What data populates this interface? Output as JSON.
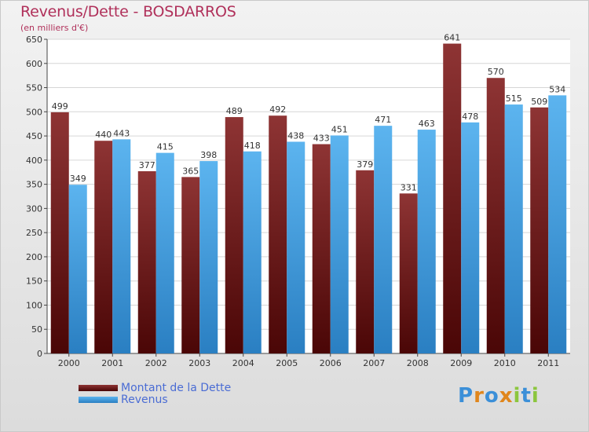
{
  "chart_data": {
    "type": "bar",
    "title": "Revenus/Dette - BOSDARROS",
    "subtitle": "(en milliers d'€)",
    "categories": [
      "2000",
      "2001",
      "2002",
      "2003",
      "2004",
      "2005",
      "2006",
      "2007",
      "2008",
      "2009",
      "2010",
      "2011"
    ],
    "series": [
      {
        "name": "Montant de la Dette",
        "color": "#7a1e1e",
        "values": [
          499,
          440,
          377,
          365,
          489,
          492,
          433,
          379,
          331,
          641,
          570,
          509
        ]
      },
      {
        "name": "Revenus",
        "color": "#4aa6e6",
        "values": [
          349,
          443,
          415,
          398,
          418,
          438,
          451,
          471,
          463,
          478,
          515,
          534
        ]
      }
    ],
    "ylim": [
      0,
      650
    ],
    "yticks": [
      0,
      50,
      100,
      150,
      200,
      250,
      300,
      350,
      400,
      450,
      500,
      550,
      600,
      650
    ],
    "grid": true,
    "legend": "bottom-left"
  },
  "logo": {
    "text": "Proxiti",
    "letters": [
      "P",
      "r",
      "o",
      "x",
      "i",
      "t",
      "i"
    ],
    "colors": [
      "#3b8fd8",
      "#e0861c",
      "#3b8fd8",
      "#e0861c",
      "#8cc63e",
      "#3b8fd8",
      "#8cc63e"
    ]
  }
}
